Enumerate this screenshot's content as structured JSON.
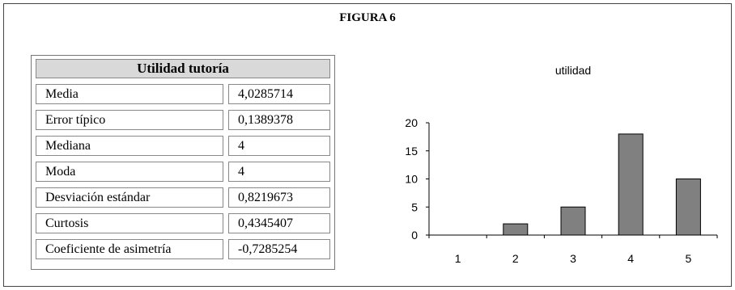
{
  "figure_title": "FIGURA 6",
  "stats": {
    "header": "Utilidad tutoría",
    "rows": [
      {
        "label": "Media",
        "value": "4,0285714"
      },
      {
        "label": "Error típico",
        "value": "0,1389378"
      },
      {
        "label": "Mediana",
        "value": "4"
      },
      {
        "label": "Moda",
        "value": "4"
      },
      {
        "label": "Desviación estándar",
        "value": "0,8219673"
      },
      {
        "label": "Curtosis",
        "value": "0,4345407"
      },
      {
        "label": "Coeficiente de asimetría",
        "value": "-0,7285254"
      }
    ]
  },
  "chart_data": {
    "type": "bar",
    "title": "utilidad",
    "categories": [
      "1",
      "2",
      "3",
      "4",
      "5"
    ],
    "values": [
      0,
      2,
      5,
      18,
      10
    ],
    "xlabel": "",
    "ylabel": "",
    "ylim": [
      0,
      20
    ],
    "yticks": [
      0,
      5,
      10,
      15,
      20
    ],
    "grid": false,
    "legend": "none",
    "bar_color": "#808080"
  }
}
